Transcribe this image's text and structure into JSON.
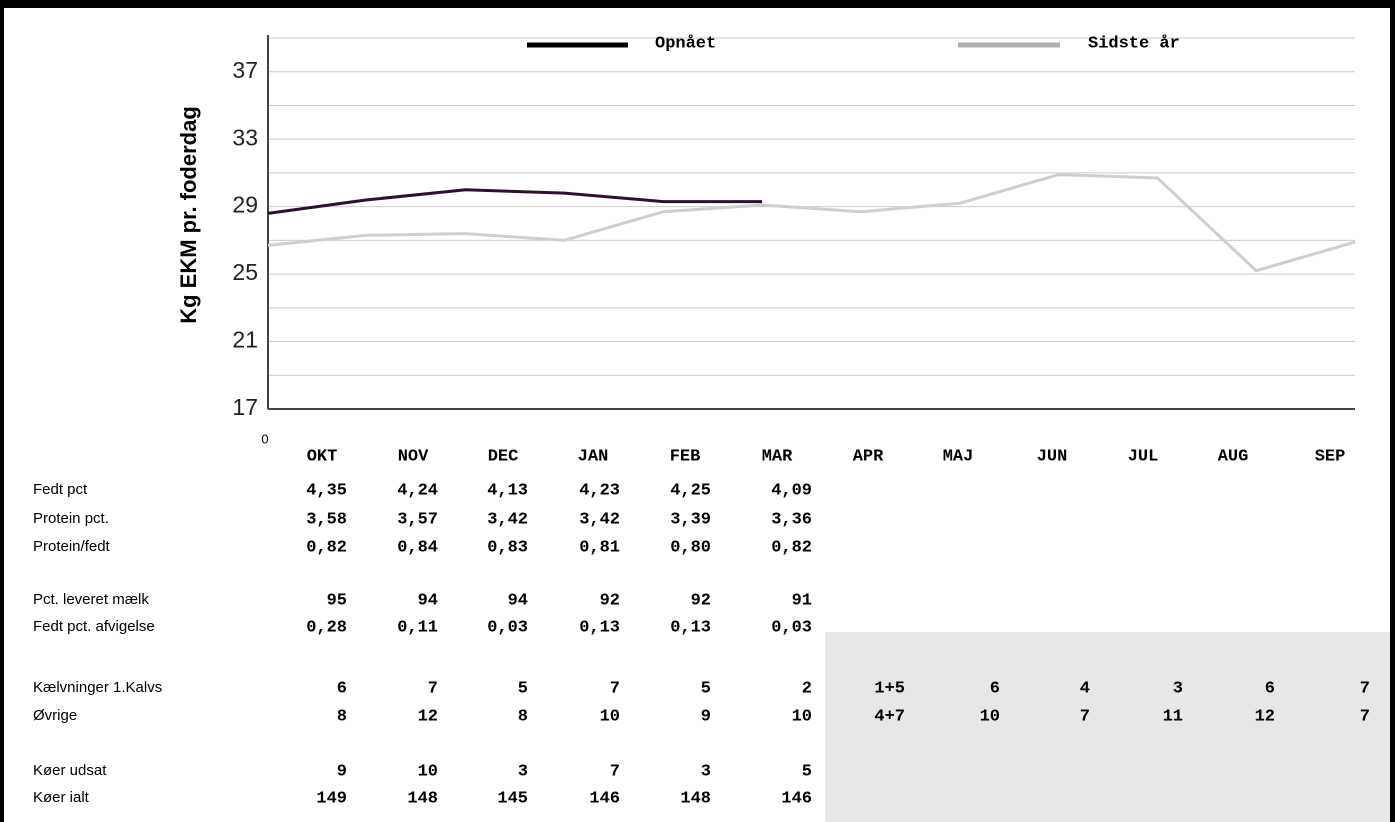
{
  "chart_data": {
    "type": "line",
    "y_label": "Kg EKM pr. foderdag",
    "origin_label": "0",
    "categories": [
      "OKT",
      "NOV",
      "DEC",
      "JAN",
      "FEB",
      "MAR",
      "APR",
      "MAJ",
      "JUN",
      "JUL",
      "AUG",
      "SEP"
    ],
    "series": [
      {
        "name": "Opnået",
        "color": "#2e1030",
        "legend_color": "#000000",
        "values": [
          28.6,
          29.4,
          30.0,
          29.8,
          29.3,
          29.3,
          null,
          null,
          null,
          null,
          null,
          null
        ]
      },
      {
        "name": "Sidste år",
        "color": "#cfcfcf",
        "legend_color": "#b0b0b0",
        "values": [
          26.7,
          27.3,
          27.4,
          27.0,
          28.7,
          29.1,
          28.7,
          29.2,
          30.9,
          30.7,
          25.2,
          26.9
        ]
      }
    ],
    "ylim": [
      17,
      39
    ],
    "yticks": [
      17,
      21,
      25,
      29,
      33,
      37
    ],
    "minor_yticks": [
      19,
      23,
      27,
      31,
      35,
      39
    ],
    "grid": true,
    "legend": "top"
  },
  "table": {
    "rows": [
      {
        "label": "Fedt pct",
        "values": [
          "4,35",
          "4,24",
          "4,13",
          "4,23",
          "4,25",
          "4,09"
        ]
      },
      {
        "label": "Protein pct.",
        "values": [
          "3,58",
          "3,57",
          "3,42",
          "3,42",
          "3,39",
          "3,36"
        ]
      },
      {
        "label": "Protein/fedt",
        "values": [
          "0,82",
          "0,84",
          "0,83",
          "0,81",
          "0,80",
          "0,82"
        ]
      },
      {
        "label": "Pct. leveret mælk",
        "values": [
          "95",
          "94",
          "94",
          "92",
          "92",
          "91"
        ]
      },
      {
        "label": "Fedt pct. afvigelse",
        "values": [
          "0,28",
          "0,11",
          "0,03",
          "0,13",
          "0,13",
          "0,03"
        ]
      },
      {
        "label": "Kælvninger 1.Kalvs",
        "values": [
          "6",
          "7",
          "5",
          "7",
          "5",
          "2",
          "1+5",
          "6",
          "4",
          "3",
          "6",
          "7"
        ]
      },
      {
        "label": "Øvrige",
        "values": [
          "8",
          "12",
          "8",
          "10",
          "9",
          "10",
          "4+7",
          "10",
          "7",
          "11",
          "12",
          "7"
        ]
      },
      {
        "label": "Køer udsat",
        "values": [
          "9",
          "10",
          "3",
          "7",
          "3",
          "5"
        ]
      },
      {
        "label": "Køer ialt",
        "values": [
          "149",
          "148",
          "145",
          "146",
          "148",
          "146"
        ]
      }
    ]
  }
}
